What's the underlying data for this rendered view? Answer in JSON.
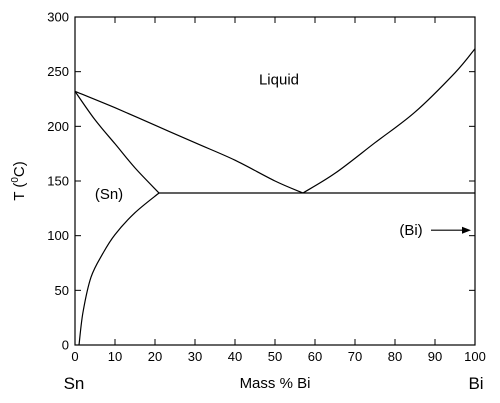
{
  "chart_data": {
    "type": "line",
    "title": "",
    "xlabel": "Mass % Bi",
    "ylabel": "T (0C)",
    "ylabel_base": "T (",
    "ylabel_sup": "0",
    "ylabel_tail": "C)",
    "xlim": [
      0,
      100
    ],
    "ylim": [
      0,
      300
    ],
    "x_ticks": [
      0,
      10,
      20,
      30,
      40,
      50,
      60,
      70,
      80,
      90,
      100
    ],
    "y_ticks": [
      0,
      50,
      100,
      150,
      200,
      250,
      300
    ],
    "grid": false,
    "left_end_label": "Sn",
    "right_end_label": "Bi",
    "series": [
      {
        "x": [
          0,
          10,
          20,
          30,
          40,
          50,
          57
        ],
        "y": [
          232,
          217,
          201,
          185,
          169,
          150,
          139
        ]
      },
      {
        "x": [
          57,
          65,
          75,
          85,
          95,
          100
        ],
        "y": [
          139,
          157,
          185,
          213,
          249,
          271
        ]
      },
      {
        "x": [
          21,
          100
        ],
        "y": [
          139,
          139
        ]
      },
      {
        "x": [
          0,
          5,
          10,
          15,
          21
        ],
        "y": [
          232,
          206,
          184,
          162,
          139
        ]
      },
      {
        "x": [
          1,
          2,
          4,
          7,
          10,
          15,
          21
        ],
        "y": [
          0,
          30,
          62,
          84,
          101,
          121,
          139
        ]
      }
    ],
    "annotations": [
      {
        "text": "Liquid",
        "x": 51,
        "y": 243
      },
      {
        "text": "(Sn)",
        "x": 8.5,
        "y": 138
      },
      {
        "text": "(Bi)",
        "x": 84,
        "y": 105,
        "arrow_to": [
          99,
          105
        ]
      }
    ]
  }
}
